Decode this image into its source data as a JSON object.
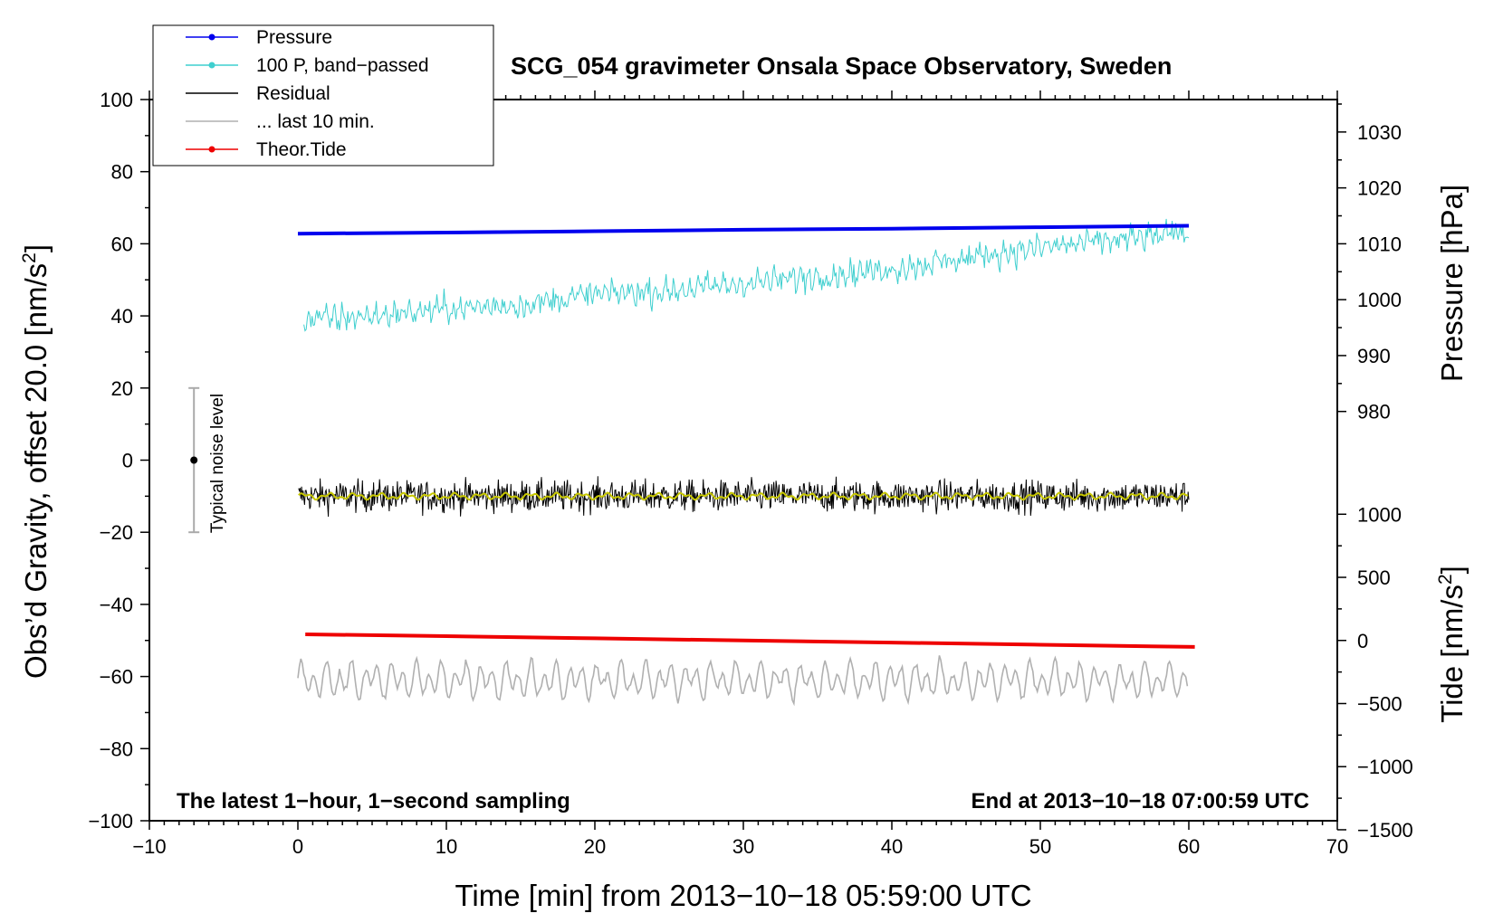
{
  "chart_data": {
    "type": "line",
    "title": "SCG_054 gravimeter Onsala Space Observatory, Sweden",
    "xlabel": "Time [min] from 2013−10−18 05:59:00 UTC",
    "ylabel_left": "Obs’d Gravity, offset 20.0 [nm/s",
    "ylabel_left_sup": "2",
    "ylabel_left_end": "]",
    "ylabel_right_pressure": "Pressure [hPa]",
    "ylabel_right_tide": "Tide [nm/s",
    "ylabel_right_tide_sup": "2",
    "ylabel_right_tide_end": "]",
    "xlim": [
      -10,
      70
    ],
    "ylim_left": [
      -100,
      100
    ],
    "pressure_range_hpa": [
      980,
      1030
    ],
    "tide_range": [
      -1500,
      1000
    ],
    "x_ticks": [
      {
        "v": -10,
        "label": "−10"
      },
      {
        "v": 0,
        "label": "0"
      },
      {
        "v": 10,
        "label": "10"
      },
      {
        "v": 20,
        "label": "20"
      },
      {
        "v": 30,
        "label": "30"
      },
      {
        "v": 40,
        "label": "40"
      },
      {
        "v": 50,
        "label": "50"
      },
      {
        "v": 60,
        "label": "60"
      },
      {
        "v": 70,
        "label": "70"
      }
    ],
    "y_ticks_left": [
      {
        "v": 100,
        "label": "100"
      },
      {
        "v": 80,
        "label": "80"
      },
      {
        "v": 60,
        "label": "60"
      },
      {
        "v": 40,
        "label": "40"
      },
      {
        "v": 20,
        "label": "20"
      },
      {
        "v": 0,
        "label": "0"
      },
      {
        "v": -20,
        "label": "−20"
      },
      {
        "v": -40,
        "label": "−40"
      },
      {
        "v": -60,
        "label": "−60"
      },
      {
        "v": -80,
        "label": "−80"
      },
      {
        "v": -100,
        "label": "−100"
      }
    ],
    "y_ticks_pressure": [
      {
        "v": 1030,
        "label": "1030"
      },
      {
        "v": 1020,
        "label": "1020"
      },
      {
        "v": 1010,
        "label": "1010"
      },
      {
        "v": 1000,
        "label": "1000"
      },
      {
        "v": 990,
        "label": "990"
      },
      {
        "v": 980,
        "label": "980"
      }
    ],
    "y_ticks_tide": [
      {
        "v": 1000,
        "label": "1000"
      },
      {
        "v": 500,
        "label": "500"
      },
      {
        "v": 0,
        "label": "0"
      },
      {
        "v": -500,
        "label": "−500"
      },
      {
        "v": -1000,
        "label": "−1000"
      },
      {
        "v": -1500,
        "label": "−1500"
      }
    ],
    "series": [
      {
        "name": "Pressure",
        "color": "#0000ee",
        "x": [
          0,
          10,
          20,
          30,
          40,
          50,
          60
        ],
        "y": [
          62.8,
          63.1,
          63.5,
          63.9,
          64.2,
          64.6,
          65.0
        ]
      },
      {
        "name": "100 P, band−passed",
        "color": "#3fcfcf",
        "x": [
          0.4,
          5,
          10,
          15,
          20,
          25,
          30,
          35,
          40,
          45,
          50,
          55,
          60
        ],
        "y": [
          39,
          40,
          42,
          43,
          46,
          47,
          49,
          51,
          53,
          56,
          59,
          61,
          63
        ]
      },
      {
        "name": "Residual",
        "color": "#000000",
        "x": [
          0,
          10,
          20,
          30,
          40,
          50,
          60
        ],
        "y": [
          -10,
          -10,
          -10,
          -10,
          -10,
          -10,
          -10
        ]
      },
      {
        "name": "... last 10 min.",
        "color": "#b0b0b0",
        "x": [
          0,
          10,
          20,
          30,
          40,
          50,
          60
        ],
        "y": [
          -61,
          -61,
          -61,
          -61,
          -61,
          -61,
          -61
        ]
      },
      {
        "name": "Theor.Tide",
        "color": "#ee0000",
        "x": [
          0.5,
          10,
          20,
          30,
          40,
          50,
          60.4
        ],
        "y": [
          -48.3,
          -48.8,
          -49.4,
          -50.0,
          -50.6,
          -51.2,
          -51.8
        ]
      }
    ],
    "smoothed_color": "#c8c800",
    "legend": [
      {
        "label": "Pressure",
        "color": "#0000ee",
        "marker": true
      },
      {
        "label": "100 P, band−passed",
        "color": "#3fcfcf",
        "marker": true
      },
      {
        "label": "Residual",
        "color": "#000000",
        "marker": false
      },
      {
        "label": "... last 10 min.",
        "color": "#b0b0b0",
        "marker": false
      },
      {
        "label": "Theor.Tide",
        "color": "#ee0000",
        "marker": true
      }
    ],
    "legend_position": "top-left",
    "annotations": {
      "bottom_left": "The latest 1−hour, 1−second sampling",
      "bottom_right": "End at 2013−10−18 07:00:59 UTC",
      "noise_label": "Typical noise level",
      "noise_center": 0,
      "noise_range": [
        -20,
        20
      ],
      "noise_x": -7
    },
    "grid": false
  }
}
